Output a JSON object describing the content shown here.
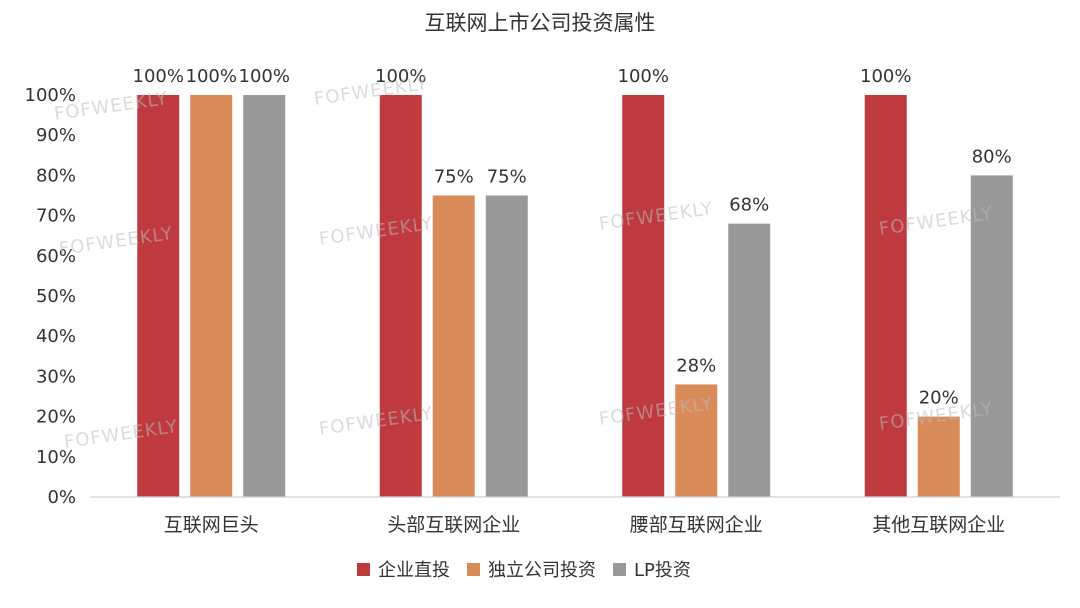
{
  "chart_data": {
    "type": "bar",
    "title": "互联网上市公司投资属性",
    "categories": [
      "互联网巨头",
      "头部互联网企业",
      "腰部互联网企业",
      "其他互联网企业"
    ],
    "series": [
      {
        "name": "企业直投",
        "color": "#BE3A3E",
        "values": [
          100,
          100,
          100,
          100
        ]
      },
      {
        "name": "独立公司投资",
        "color": "#D98C5A",
        "values": [
          100,
          75,
          28,
          20
        ]
      },
      {
        "name": "LP投资",
        "color": "#999999",
        "values": [
          100,
          75,
          68,
          80
        ]
      }
    ],
    "data_labels": [
      [
        "100%",
        "100%",
        "100%",
        "100%"
      ],
      [
        "100%",
        "75%",
        "28%",
        "20%"
      ],
      [
        "100%",
        "75%",
        "68%",
        "80%"
      ]
    ],
    "ylim": [
      0,
      100
    ],
    "yticks": [
      0,
      10,
      20,
      30,
      40,
      50,
      60,
      70,
      80,
      90,
      100
    ],
    "ytick_labels": [
      "0%",
      "10%",
      "20%",
      "30%",
      "40%",
      "50%",
      "60%",
      "70%",
      "80%",
      "90%",
      "100%"
    ],
    "xlabel": "",
    "ylabel": "",
    "grid": false,
    "legend_position": "bottom"
  },
  "watermark": {
    "text": "FOFWEEKLY"
  }
}
